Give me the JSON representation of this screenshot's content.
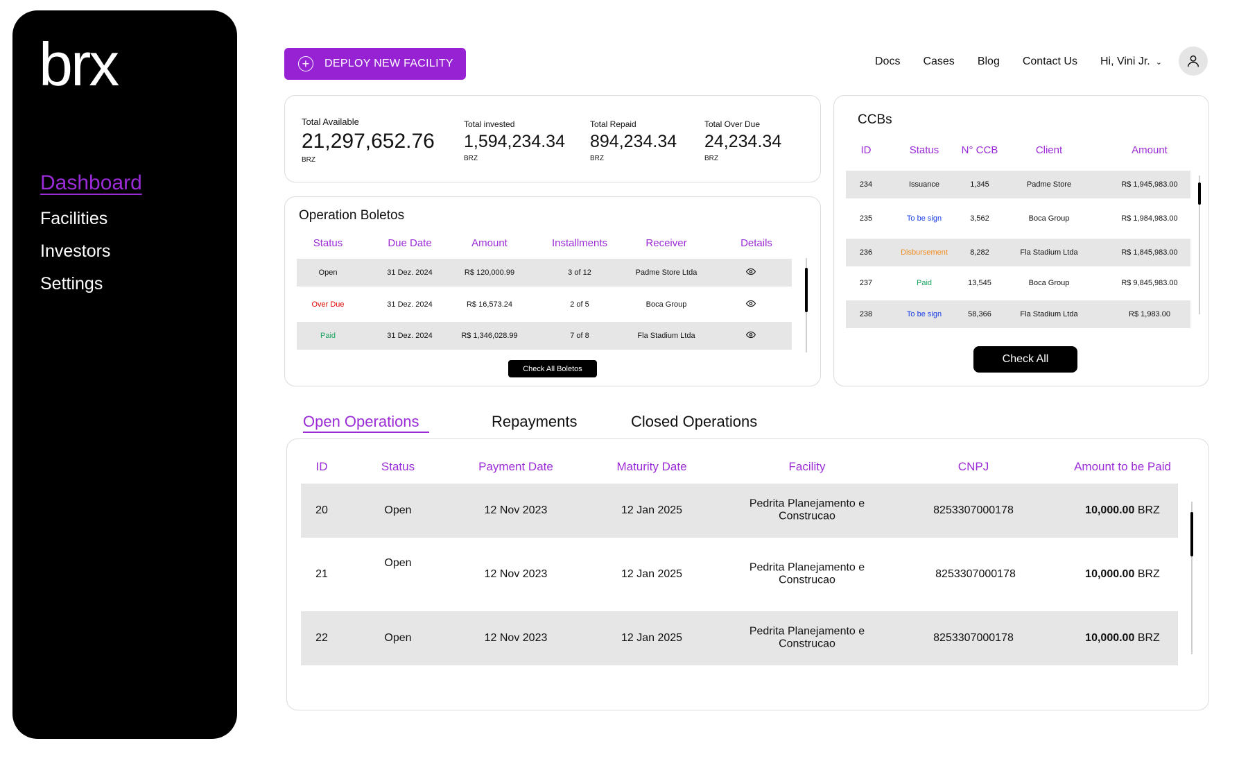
{
  "sidebar": {
    "logo": "brx",
    "items": [
      {
        "label": "Dashboard",
        "active": true
      },
      {
        "label": "Facilities"
      },
      {
        "label": "Investors"
      },
      {
        "label": "Settings"
      }
    ]
  },
  "header": {
    "deploy_label": "DEPLOY NEW FACILITY",
    "links": [
      "Docs",
      "Cases",
      "Blog",
      "Contact Us"
    ],
    "greeting": "Hi, Vini Jr."
  },
  "totals": {
    "available": {
      "label": "Total Available",
      "value": "21,297,652.76",
      "unit": "BRZ"
    },
    "invested": {
      "label": "Total invested",
      "value": "1,594,234.34",
      "unit": "BRZ"
    },
    "repaid": {
      "label": "Total Repaid",
      "value": "894,234.34",
      "unit": "BRZ"
    },
    "overdue": {
      "label": "Total Over Due",
      "value": "24,234.34",
      "unit": "BRZ"
    }
  },
  "boletos": {
    "title": "Operation Boletos",
    "headers": [
      "Status",
      "Due Date",
      "Amount",
      "Installments",
      "Receiver",
      "Details"
    ],
    "rows": [
      {
        "status": "Open",
        "due": "31 Dez. 2024",
        "amount": "R$ 120,000.99",
        "installments": "3 of 12",
        "receiver": "Padme Store Ltda"
      },
      {
        "status": "Over Due",
        "due": "31 Dez. 2024",
        "amount": "R$ 16,573.24",
        "installments": "2 of 5",
        "receiver": "Boca Group"
      },
      {
        "status": "Paid",
        "due": "31 Dez. 2024",
        "amount": "R$ 1,346,028.99",
        "installments": "7 of 8",
        "receiver": "Fla Stadium Ltda"
      }
    ],
    "button": "Check All Boletos"
  },
  "ccbs": {
    "title": "CCBs",
    "headers": [
      "ID",
      "Status",
      "N° CCB",
      "Client",
      "Amount"
    ],
    "rows": [
      {
        "id": "234",
        "status": "Issuance",
        "ccb": "1,345",
        "client": "Padme Store",
        "amount": "R$ 1,945,983.00"
      },
      {
        "id": "235",
        "status": "To be sign",
        "ccb": "3,562",
        "client": "Boca Group",
        "amount": "R$ 1,984,983.00"
      },
      {
        "id": "236",
        "status": "Disbursement",
        "ccb": "8,282",
        "client": "Fla Stadium Ltda",
        "amount": "R$ 1,845,983.00"
      },
      {
        "id": "237",
        "status": "Paid",
        "ccb": "13,545",
        "client": "Boca Group",
        "amount": "R$ 9,845,983.00"
      },
      {
        "id": "238",
        "status": "To be sign",
        "ccb": "58,366",
        "client": "Fla Stadium Ltda",
        "amount": "R$ 1,983.00"
      }
    ],
    "button": "Check All"
  },
  "tabs": [
    "Open Operations",
    "Repayments",
    "Closed Operations"
  ],
  "operations": {
    "headers": [
      "ID",
      "Status",
      "Payment Date",
      "Maturity Date",
      "Facility",
      "CNPJ",
      "Amount to be Paid"
    ],
    "rows": [
      {
        "id": "20",
        "status": "Open",
        "payment": "12 Nov 2023",
        "maturity": "12 Jan 2025",
        "facility": "Pedrita Planejamento e Construcao",
        "cnpj": "8253307000178",
        "amount": "10,000.00",
        "unit": "BRZ"
      },
      {
        "id": "21",
        "status": "Open",
        "payment": "12 Nov 2023",
        "maturity": "12 Jan 2025",
        "facility": "Pedrita Planejamento e Construcao",
        "cnpj": "8253307000178",
        "amount": "10,000.00",
        "unit": "BRZ"
      },
      {
        "id": "22",
        "status": "Open",
        "payment": "12 Nov 2023",
        "maturity": "12 Jan 2025",
        "facility": "Pedrita Planejamento e Construcao",
        "cnpj": "8253307000178",
        "amount": "10,000.00",
        "unit": "BRZ"
      }
    ]
  },
  "colors": {
    "accent": "#9622d4",
    "over_due": "#e00000",
    "paid": "#1aa35f",
    "to_be_sign": "#1a3ee6",
    "disbursement": "#f08a1c"
  }
}
